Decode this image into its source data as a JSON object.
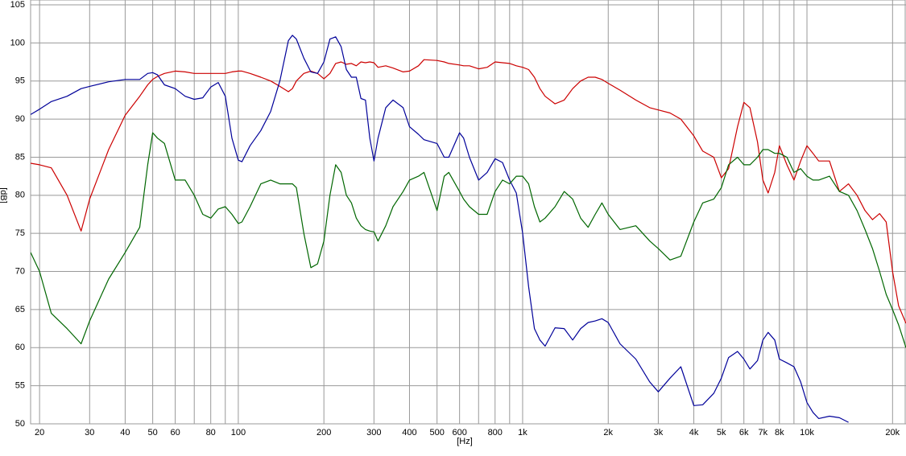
{
  "chart_data": {
    "type": "line",
    "x_label": "[Hz]",
    "y_label": "[dB]",
    "log_x": true,
    "grid": true,
    "xlim": [
      18.6,
      22300
    ],
    "ylim": [
      50,
      105
    ],
    "yticks": [
      50,
      55,
      60,
      65,
      70,
      75,
      80,
      85,
      90,
      95,
      100,
      105
    ],
    "xticks": [
      20,
      30,
      40,
      50,
      60,
      80,
      100,
      200,
      300,
      400,
      500,
      600,
      800,
      {
        "value": 1000,
        "label": "1k"
      },
      {
        "value": 2000,
        "label": "2k"
      },
      {
        "value": 3000,
        "label": "3k"
      },
      {
        "value": 4000,
        "label": "4k"
      },
      {
        "value": 5000,
        "label": "5k"
      },
      {
        "value": 6000,
        "label": "6k"
      },
      {
        "value": 7000,
        "label": "7k"
      },
      {
        "value": 8000,
        "label": "8k"
      },
      {
        "value": 10000,
        "label": "10k"
      },
      {
        "value": 20000,
        "label": "20k"
      }
    ],
    "xminor": [
      70,
      90,
      700,
      900,
      9000
    ],
    "x": [
      18.6,
      20,
      22,
      25,
      28,
      30,
      35,
      40,
      45,
      48,
      50,
      52,
      55,
      60,
      65,
      70,
      75,
      80,
      85,
      90,
      95,
      100,
      103,
      110,
      120,
      130,
      140,
      150,
      155,
      160,
      170,
      180,
      190,
      200,
      210,
      220,
      230,
      240,
      250,
      260,
      270,
      280,
      290,
      300,
      310,
      330,
      350,
      380,
      400,
      430,
      450,
      500,
      530,
      550,
      600,
      620,
      650,
      700,
      750,
      800,
      850,
      900,
      950,
      1000,
      1050,
      1100,
      1150,
      1200,
      1300,
      1400,
      1500,
      1600,
      1700,
      1800,
      1900,
      2000,
      2200,
      2500,
      2800,
      3000,
      3300,
      3600,
      4000,
      4300,
      4700,
      5000,
      5300,
      5700,
      6000,
      6300,
      6700,
      7000,
      7300,
      7700,
      8000,
      8500,
      9000,
      9500,
      10000,
      10500,
      11000,
      12000,
      13000,
      14000,
      15000,
      16000,
      17000,
      18000,
      19000,
      20000,
      21000,
      22300
    ],
    "series": [
      {
        "color": "#cc0000",
        "values": [
          84.2,
          84,
          83.6,
          80,
          75.3,
          79.5,
          86,
          90.5,
          93,
          94.5,
          95.2,
          95.6,
          96,
          96.3,
          96.2,
          96,
          96,
          96,
          96,
          96,
          96.2,
          96.3,
          96.3,
          96,
          95.5,
          95,
          94.3,
          93.6,
          94,
          95,
          96,
          96.3,
          96,
          95.3,
          96,
          97.3,
          97.5,
          97.2,
          97.3,
          97,
          97.5,
          97.4,
          97.5,
          97.4,
          96.8,
          97,
          96.7,
          96.2,
          96.3,
          97,
          97.8,
          97.7,
          97.5,
          97.3,
          97.1,
          97,
          97,
          96.6,
          96.8,
          97.5,
          97.4,
          97.3,
          97,
          96.8,
          96.5,
          95.5,
          94,
          93,
          92,
          92.5,
          94,
          95,
          95.5,
          95.5,
          95.2,
          94.7,
          93.8,
          92.5,
          91.5,
          91.2,
          90.8,
          90,
          87.8,
          85.8,
          85,
          82.3,
          83.5,
          89,
          92.2,
          91.5,
          87,
          82,
          80.3,
          83,
          86.5,
          84,
          82,
          84.5,
          86.5,
          85.5,
          84.5,
          84.5,
          80.5,
          81.5,
          80,
          78,
          76.8,
          77.6,
          76.5,
          70,
          65.5,
          63.2
        ]
      },
      {
        "color": "#000099",
        "values": [
          90.6,
          91.3,
          92.3,
          93,
          94,
          94.3,
          94.9,
          95.2,
          95.2,
          96,
          96.1,
          95.8,
          94.5,
          94,
          93,
          92.6,
          92.8,
          94.2,
          94.8,
          93,
          87.5,
          84.6,
          84.4,
          86.5,
          88.5,
          91,
          95,
          100.3,
          101,
          100.5,
          98,
          96.2,
          96,
          97.5,
          100.5,
          100.8,
          99.5,
          96.5,
          95.5,
          95.5,
          92.7,
          92.5,
          87.5,
          84.5,
          87.5,
          91.5,
          92.5,
          91.5,
          89,
          88,
          87.3,
          86.8,
          85,
          85,
          88.2,
          87.5,
          85,
          82,
          83,
          84.8,
          84.3,
          82,
          80.3,
          75,
          68,
          62.5,
          61,
          60.2,
          62.6,
          62.5,
          61,
          62.5,
          63.3,
          63.5,
          63.8,
          63.3,
          60.5,
          58.5,
          55.5,
          54.2,
          56,
          57.5,
          52.4,
          52.5,
          54,
          56,
          58.7,
          59.5,
          58.5,
          57.2,
          58.3,
          61,
          62,
          61,
          58.5,
          58,
          57.5,
          55.5,
          52.8,
          51.5,
          50.7,
          51,
          50.8,
          50.2,
          null,
          null,
          null,
          null,
          null,
          null,
          null,
          null
        ]
      },
      {
        "color": "#006600",
        "values": [
          72.5,
          70,
          64.5,
          62.5,
          60.5,
          63.5,
          69,
          72.5,
          75.8,
          84,
          88.2,
          87.5,
          86.8,
          82,
          82,
          80,
          77.5,
          77,
          78.2,
          78.5,
          77.5,
          76.3,
          76.5,
          78.5,
          81.5,
          82,
          81.5,
          81.5,
          81.5,
          81,
          75,
          70.5,
          71,
          74,
          80,
          84,
          83,
          80,
          79,
          77,
          76,
          75.5,
          75.3,
          75.2,
          74,
          76,
          78.5,
          80.5,
          82,
          82.5,
          83,
          78,
          82.5,
          83,
          80.5,
          79.5,
          78.5,
          77.5,
          77.5,
          80.5,
          82,
          81.5,
          82.5,
          82.5,
          81.5,
          78.5,
          76.5,
          77,
          78.5,
          80.5,
          79.5,
          77,
          75.8,
          77.5,
          79,
          77.5,
          75.5,
          76,
          74,
          73,
          71.5,
          72,
          76.5,
          79,
          79.5,
          81,
          84,
          85,
          84,
          84,
          85,
          86,
          86,
          85.5,
          85.5,
          85,
          83,
          83.5,
          82.5,
          82,
          82,
          82.5,
          80.5,
          80,
          78,
          75.5,
          73,
          70,
          67,
          65,
          63,
          60
        ]
      }
    ]
  }
}
